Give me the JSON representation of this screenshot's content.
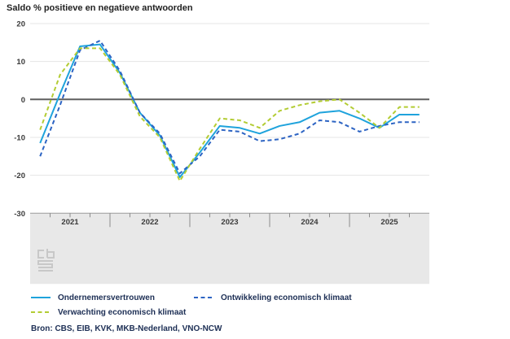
{
  "title": "Saldo % positieve en negatieve antwoorden",
  "source": "Bron: CBS, EIB, KVK, MKB-Nederland, VNO-NCW",
  "colors": {
    "series_ondernemersvertrouwen": "#1fa3dc",
    "series_ontwikkeling": "#2d64c3",
    "series_verwachting": "#b3cc33",
    "zero_line": "#5f5f5f",
    "gridline": "#e4e4e4",
    "axis_band": "#e8e8e8",
    "axis_band_border": "#9b9b9b",
    "tick": "#8c8c8c",
    "axis_text": "#3a3a3a",
    "watermark": "#c8c8c8"
  },
  "watermark_icon": "cbs-logo",
  "chart_data": {
    "type": "line",
    "title": "Saldo % positieve en negatieve antwoorden",
    "xlabel": "",
    "ylabel": "Saldo % positieve en negatieve antwoorden",
    "ylim": [
      -30,
      20
    ],
    "y_ticks": [
      20,
      10,
      0,
      -10,
      -20,
      -30
    ],
    "grid": true,
    "legend_position": "bottom",
    "x_tick_labels": [
      "2021",
      "2022",
      "2023",
      "2024",
      "2025"
    ],
    "categories": [
      "2021Q1",
      "2021Q2",
      "2021Q3",
      "2021Q4",
      "2022Q1",
      "2022Q2",
      "2022Q3",
      "2022Q4",
      "2023Q1",
      "2023Q2",
      "2023Q3",
      "2023Q4",
      "2024Q1",
      "2024Q2",
      "2024Q3",
      "2024Q4",
      "2025Q1",
      "2025Q2",
      "2025Q3",
      "2025Q4"
    ],
    "series": [
      {
        "name": "Ondernemersvertrouwen",
        "style": "solid",
        "color": "#1fa3dc",
        "values": [
          -11.5,
          1.5,
          14,
          14.5,
          7,
          -3.5,
          -9.5,
          -20.5,
          -14,
          -7,
          -7.5,
          -9,
          -7,
          -6,
          -3.5,
          -3,
          -5,
          -7.5,
          -4,
          -4
        ]
      },
      {
        "name": "Ontwikkeling economisch klimaat",
        "style": "dashed",
        "color": "#2d64c3",
        "values": [
          -15,
          -1.5,
          13,
          15.5,
          7.5,
          -3.5,
          -9,
          -19.5,
          -15,
          -8,
          -8.5,
          -11,
          -10.5,
          -9,
          -5.5,
          -6,
          -8.5,
          -7,
          -6,
          -6
        ]
      },
      {
        "name": "Verwachting economisch klimaat",
        "style": "dashed",
        "color": "#b3cc33",
        "values": [
          -8,
          6.5,
          13.5,
          13.5,
          6.5,
          -4.5,
          -10,
          -21.5,
          -13,
          -5,
          -5.5,
          -7.5,
          -3,
          -1.5,
          -0.5,
          0,
          -3.5,
          -7.5,
          -2,
          -2
        ]
      }
    ]
  }
}
